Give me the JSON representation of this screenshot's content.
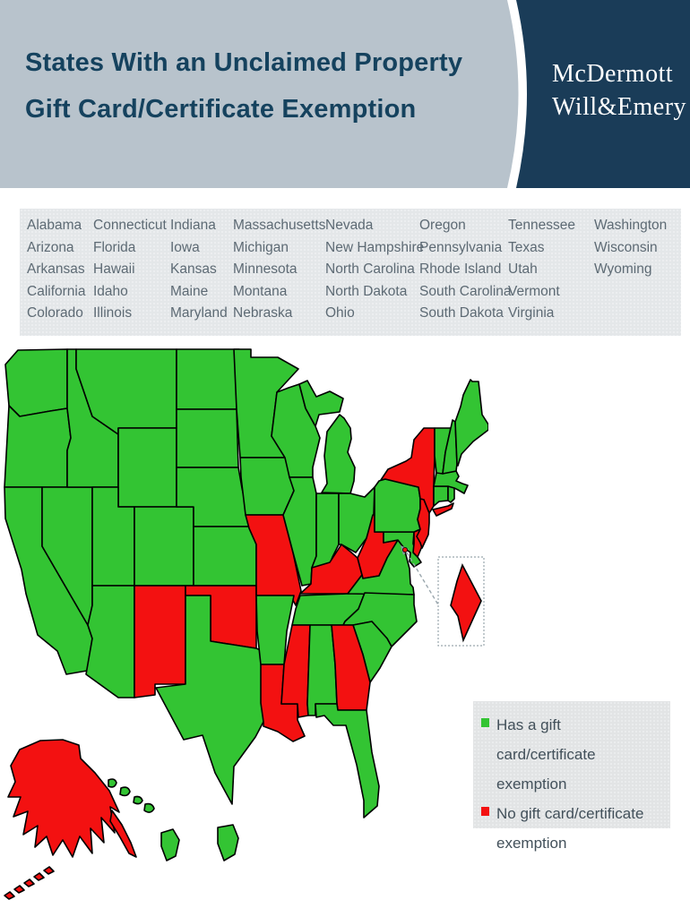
{
  "header": {
    "title_line1": "States With an Unclaimed Property",
    "title_line2": "Gift Card/Certificate Exemption",
    "logo_line1": "McDermott",
    "logo_line2": "Will&Emery"
  },
  "colors": {
    "navy": "#1a3c58",
    "header_gray": "#b8c3cc",
    "title_text": "#15425e",
    "has_exemption": "#33c433",
    "no_exemption": "#f31111"
  },
  "state_list": {
    "columns": [
      [
        "Alabama",
        "Arizona",
        "Arkansas",
        "California",
        "Colorado"
      ],
      [
        "Connecticut",
        "Florida",
        "Hawaii",
        "Idaho",
        "Illinois"
      ],
      [
        "Indiana",
        "Iowa",
        "Kansas",
        "Maine",
        "Maryland"
      ],
      [
        "Massachusetts",
        "Michigan",
        "Minnesota",
        "Montana",
        "Nebraska"
      ],
      [
        "Nevada",
        "New Hampshire",
        "North Carolina",
        "North Dakota",
        "Ohio"
      ],
      [
        "Oregon",
        "Pennsylvania",
        "Rhode Island",
        "South Carolina",
        "South Dakota"
      ],
      [
        "Tennessee",
        "Texas",
        "Utah",
        "Vermont",
        "Virginia"
      ],
      [
        "Washington",
        "Wisconsin",
        "Wyoming"
      ]
    ]
  },
  "map": {
    "has_exemption": [
      "Alabama",
      "Arizona",
      "Arkansas",
      "California",
      "Colorado",
      "Connecticut",
      "Florida",
      "Hawaii",
      "Idaho",
      "Illinois",
      "Indiana",
      "Iowa",
      "Kansas",
      "Maine",
      "Maryland",
      "Massachusetts",
      "Michigan",
      "Minnesota",
      "Montana",
      "Nebraska",
      "Nevada",
      "New Hampshire",
      "North Carolina",
      "North Dakota",
      "Ohio",
      "Oregon",
      "Pennsylvania",
      "Rhode Island",
      "South Carolina",
      "South Dakota",
      "Tennessee",
      "Texas",
      "Utah",
      "Vermont",
      "Virginia",
      "Washington",
      "Wisconsin",
      "Wyoming"
    ],
    "no_exemption": [
      "Alaska",
      "Delaware",
      "District of Columbia",
      "Georgia",
      "Kentucky",
      "Louisiana",
      "Mississippi",
      "Missouri",
      "New Jersey",
      "New Mexico",
      "New York",
      "Oklahoma",
      "West Virginia"
    ],
    "inset": "District of Columbia"
  },
  "legend": {
    "items": [
      {
        "swatch": "has_exemption",
        "label": "Has a gift card/certificate exemption"
      },
      {
        "swatch": "no_exemption",
        "label": "No gift card/certificate exemption"
      }
    ]
  }
}
